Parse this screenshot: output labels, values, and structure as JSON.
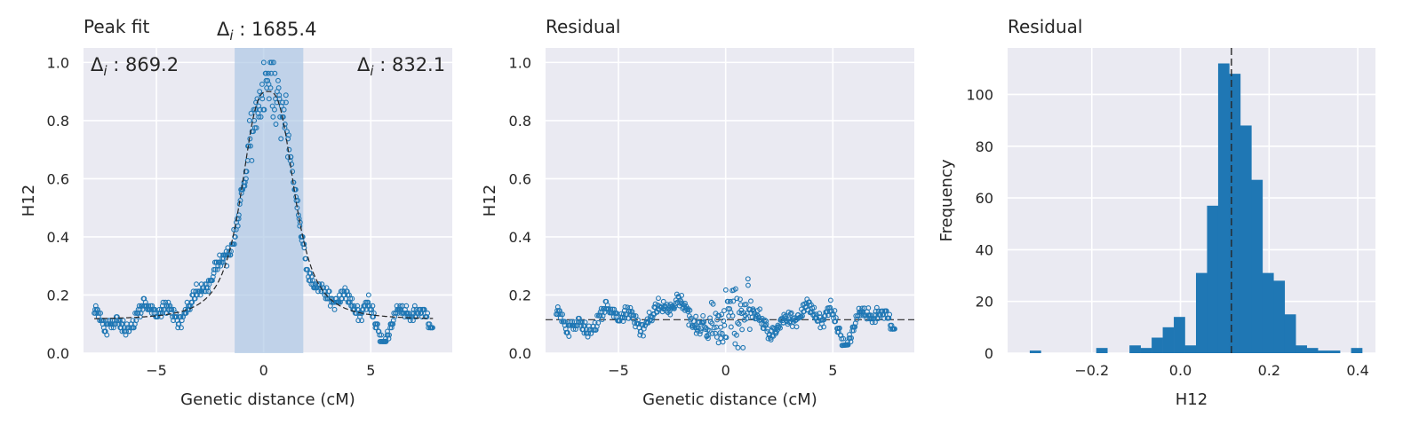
{
  "chart_data": [
    {
      "type": "scatter",
      "title": "Peak fit",
      "xlabel": "Genetic distance (cM)",
      "ylabel": "H12",
      "xlim": [
        -8.4,
        8.8
      ],
      "ylim": [
        0,
        1.05
      ],
      "xticks": [
        -5,
        0,
        5
      ],
      "xtick_labels": [
        "−5",
        "0",
        "5"
      ],
      "yticks": [
        0,
        0.2,
        0.4,
        0.6,
        0.8,
        1.0
      ],
      "ytick_labels": [
        "0.0",
        "0.2",
        "0.4",
        "0.6",
        "0.8",
        "1.0"
      ],
      "grid": true,
      "marker_color": "#1f77b4",
      "shaded_region": {
        "x": [
          -1.35,
          1.85
        ],
        "color": "#a9c5e3"
      },
      "baseline": 0.115,
      "peak": {
        "center": 0.2,
        "height": 0.785,
        "width": 1.35
      },
      "annotations": [
        {
          "symbol": "Δ",
          "subscript": "i",
          "text": " : 869.2",
          "position": "top-left"
        },
        {
          "symbol": "Δ",
          "subscript": "i",
          "text": " : 1685.4",
          "position": "above-center"
        },
        {
          "symbol": "Δ",
          "subscript": "i",
          "text": " : 832.1",
          "position": "top-right"
        }
      ]
    },
    {
      "type": "scatter",
      "title": "Residual",
      "xlabel": "Genetic distance (cM)",
      "ylabel": "H12",
      "xlim": [
        -8.4,
        8.8
      ],
      "ylim": [
        0,
        1.05
      ],
      "xticks": [
        -5,
        0,
        5
      ],
      "xtick_labels": [
        "−5",
        "0",
        "5"
      ],
      "yticks": [
        0,
        0.2,
        0.4,
        0.6,
        0.8,
        1.0
      ],
      "ytick_labels": [
        "0.0",
        "0.2",
        "0.4",
        "0.6",
        "0.8",
        "1.0"
      ],
      "grid": true,
      "marker_color": "#1f77b4",
      "hline": 0.115
    },
    {
      "type": "bar",
      "title": "Residual",
      "xlabel": "H12",
      "ylabel": "Frequency",
      "xlim": [
        -0.39,
        0.44
      ],
      "ylim": [
        0,
        118
      ],
      "xticks": [
        -0.2,
        0.0,
        0.2,
        0.4
      ],
      "xtick_labels": [
        "−0.2",
        "0.0",
        "0.2",
        "0.4"
      ],
      "yticks": [
        0,
        20,
        40,
        60,
        80,
        100
      ],
      "ytick_labels": [
        "0",
        "20",
        "40",
        "60",
        "80",
        "100"
      ],
      "grid": true,
      "bar_color": "#1f77b4",
      "vline": 0.115,
      "bin_edges": [
        -0.34,
        -0.315,
        -0.29,
        -0.265,
        -0.24,
        -0.215,
        -0.19,
        -0.165,
        -0.14,
        -0.115,
        -0.09,
        -0.065,
        -0.04,
        -0.015,
        0.01,
        0.035,
        0.06,
        0.085,
        0.11,
        0.135,
        0.16,
        0.185,
        0.21,
        0.235,
        0.26,
        0.285,
        0.31,
        0.335,
        0.36,
        0.385,
        0.41
      ],
      "values": [
        1,
        0,
        0,
        0,
        0,
        0,
        2,
        0,
        0,
        3,
        2,
        6,
        10,
        14,
        3,
        31,
        57,
        112,
        108,
        88,
        67,
        31,
        28,
        15,
        3,
        2,
        1,
        1,
        0,
        2
      ]
    }
  ]
}
